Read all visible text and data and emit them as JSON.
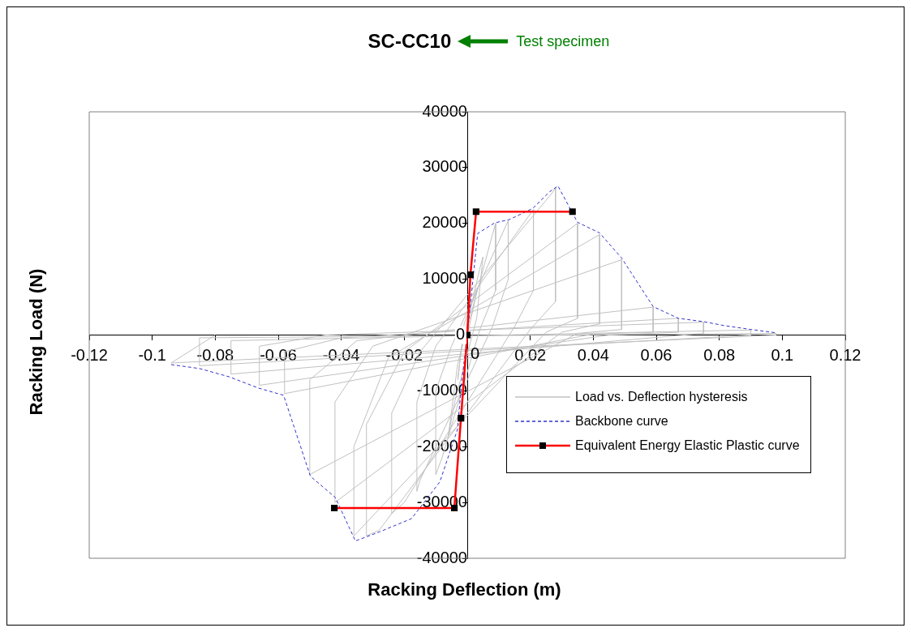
{
  "chart_data": {
    "type": "line",
    "title": "SC-CC10",
    "annotations": [
      "Test specimen"
    ],
    "xlabel": "Racking Deflection (m)",
    "ylabel": "Racking Load (N)",
    "xlim": [
      -0.12,
      0.12
    ],
    "xticks": [
      -0.12,
      -0.1,
      -0.08,
      -0.06,
      -0.04,
      -0.02,
      0,
      0.02,
      0.04,
      0.06,
      0.08,
      0.1,
      0.12
    ],
    "ylim": [
      -40000,
      40000
    ],
    "yticks": [
      -40000,
      -30000,
      -20000,
      -10000,
      0,
      10000,
      20000,
      30000,
      40000
    ],
    "grid": false,
    "legend": "bottom right",
    "series": [
      {
        "name": "Load vs. Deflection hysteresis",
        "color": "#c0c0c0",
        "marker": "none",
        "line_style": "solid",
        "x": [
          0,
          0.002,
          0.003,
          -0.001,
          -0.003,
          -0.002,
          0.004,
          0.005,
          0.003,
          -0.004,
          -0.006,
          -0.003,
          0.008,
          0.009,
          0.009,
          0.004,
          -0.008,
          -0.01,
          -0.01,
          -0.005,
          0.013,
          0.013,
          0.008,
          -0.015,
          -0.016,
          -0.016,
          -0.01,
          0.021,
          0.021,
          0.015,
          -0.02,
          -0.024,
          -0.024,
          -0.015,
          0.027,
          0.028,
          0.028,
          0.02,
          -0.028,
          -0.032,
          -0.032,
          -0.02,
          0.035,
          0.035,
          0.025,
          -0.036,
          -0.036,
          -0.025,
          0.042,
          0.042,
          0.03,
          -0.042,
          -0.042,
          -0.03,
          0.049,
          0.049,
          0.035,
          -0.05,
          -0.05,
          -0.035,
          0.059,
          0.059,
          0.04,
          -0.058,
          -0.058,
          -0.04,
          0.067,
          0.067,
          0.045,
          -0.066,
          -0.066,
          -0.045,
          0.075,
          0.075,
          -0.075,
          -0.075,
          0.09,
          0.09,
          -0.085,
          -0.085,
          0.098,
          0.098,
          -0.094,
          -0.08
        ],
        "values": [
          0,
          5000,
          8000,
          2000,
          -8000,
          -3000,
          12000,
          14000,
          3000,
          -12000,
          -18000,
          -5000,
          18000,
          20000,
          8000,
          1000,
          -22000,
          -25000,
          -10000,
          -2000,
          20500,
          10000,
          1500,
          -26000,
          -28000,
          -12000,
          -2000,
          22500,
          8000,
          1500,
          -30000,
          -32000,
          -14000,
          -3000,
          25500,
          26500,
          6000,
          1000,
          -35000,
          -36000,
          -16000,
          -3000,
          20000,
          3000,
          500,
          -36000,
          -20000,
          -4000,
          18000,
          2000,
          500,
          -30000,
          -12000,
          -2000,
          13500,
          1000,
          300,
          -25000,
          -8000,
          -1000,
          5000,
          500,
          200,
          -10500,
          -3000,
          -500,
          3000,
          500,
          0,
          -9000,
          -2000,
          0,
          2300,
          300,
          -7000,
          -1000,
          900,
          0,
          -5500,
          -500,
          300,
          0,
          -5000,
          0
        ]
      },
      {
        "name": "Backbone curve",
        "color": "#3333cc",
        "marker": "none",
        "line_style": "dashed",
        "x": [
          -0.094,
          -0.085,
          -0.0755,
          -0.0663,
          -0.0583,
          -0.0498,
          -0.0419,
          -0.0355,
          -0.028,
          -0.0177,
          -0.0087,
          -0.0031,
          -0.0018,
          0,
          0.0033,
          0.0087,
          0.0134,
          0.0208,
          0.0262,
          0.0288,
          0.035,
          0.042,
          0.049,
          0.059,
          0.067,
          0.075,
          0.0815,
          0.09,
          0.098
        ],
        "values": [
          -5300,
          -6000,
          -7500,
          -9500,
          -10800,
          -25300,
          -29100,
          -36900,
          -35300,
          -32900,
          -26300,
          -16900,
          -8500,
          0,
          18200,
          20100,
          20700,
          22700,
          25700,
          26700,
          20200,
          18300,
          13800,
          5100,
          3000,
          2400,
          1700,
          1000,
          400
        ]
      },
      {
        "name": "Equivalent Energy Elastic Plastic curve",
        "color": "#ff0000",
        "marker": "square",
        "line_style": "solid",
        "x": [
          -0.0422,
          -0.0041,
          -0.002,
          0,
          0.001,
          0.0028,
          0.0334
        ],
        "values": [
          -31000,
          -31000,
          -14900,
          0,
          10800,
          22100,
          22100
        ]
      }
    ]
  }
}
